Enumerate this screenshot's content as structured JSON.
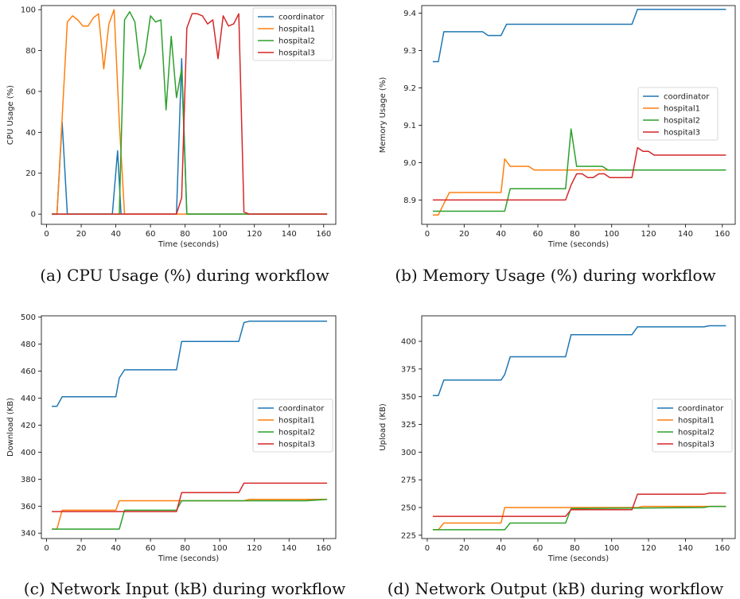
{
  "series_colors": {
    "coordinator": "#1f77b4",
    "hospital1": "#ff7f0e",
    "hospital2": "#2ca02c",
    "hospital3": "#d62728"
  },
  "chart_data": [
    {
      "type": "line",
      "caption": "(a) CPU Usage (%) during workflow",
      "xlabel": "Time (seconds)",
      "ylabel": "CPU Usage (%)",
      "xlim": [
        -3,
        167
      ],
      "ylim": [
        -5,
        102
      ],
      "xticks": [
        0,
        20,
        40,
        60,
        80,
        100,
        120,
        140,
        160
      ],
      "yticks": [
        0,
        20,
        40,
        60,
        80,
        100
      ],
      "ytick_labels": [
        "0",
        "20",
        "40",
        "60",
        "80",
        "100"
      ],
      "legend_position": "top-right",
      "series": [
        {
          "name": "coordinator",
          "x": [
            3,
            6,
            9,
            12,
            15,
            38,
            41,
            43,
            46,
            75,
            78,
            81,
            84,
            160,
            162
          ],
          "y": [
            0,
            0,
            45,
            0,
            0,
            0,
            31,
            0,
            0,
            0,
            76,
            0,
            0,
            0,
            0
          ]
        },
        {
          "name": "hospital1",
          "x": [
            3,
            6,
            12,
            15,
            18,
            21,
            24,
            27,
            30,
            33,
            36,
            39,
            42,
            45,
            48,
            160,
            162
          ],
          "y": [
            0,
            0,
            94,
            97,
            95,
            92,
            92,
            96,
            98,
            71,
            93,
            100,
            45,
            0,
            0,
            0,
            0
          ]
        },
        {
          "name": "hospital2",
          "x": [
            3,
            40,
            42,
            45,
            48,
            51,
            54,
            57,
            60,
            63,
            66,
            69,
            72,
            75,
            78,
            81,
            84,
            160,
            162
          ],
          "y": [
            0,
            0,
            0,
            95,
            99,
            94,
            71,
            79,
            97,
            94,
            95,
            51,
            87,
            57,
            71,
            0,
            0,
            0,
            0
          ]
        },
        {
          "name": "hospital3",
          "x": [
            3,
            75,
            78,
            81,
            84,
            87,
            90,
            93,
            96,
            99,
            102,
            105,
            108,
            111,
            114,
            117,
            160,
            162
          ],
          "y": [
            0,
            0,
            8,
            91,
            98,
            98,
            97,
            93,
            95,
            76,
            97,
            92,
            93,
            98,
            1,
            0,
            0,
            0
          ]
        }
      ]
    },
    {
      "type": "line",
      "caption": "(b) Memory Usage (%) during workflow",
      "xlabel": "Time (seconds)",
      "ylabel": "Memory Usage (%)",
      "xlim": [
        -3,
        167
      ],
      "ylim": [
        8.835,
        9.42
      ],
      "xticks": [
        0,
        20,
        40,
        60,
        80,
        100,
        120,
        140,
        160
      ],
      "yticks": [
        8.9,
        9.0,
        9.1,
        9.2,
        9.3,
        9.4
      ],
      "ytick_labels": [
        "8.9",
        "9.0",
        "9.1",
        "9.2",
        "9.3",
        "9.4"
      ],
      "legend_position": "center-right",
      "series": [
        {
          "name": "coordinator",
          "x": [
            3,
            6,
            9,
            12,
            30,
            33,
            37,
            40,
            43,
            60,
            80,
            100,
            111,
            114,
            162
          ],
          "y": [
            9.27,
            9.27,
            9.35,
            9.35,
            9.35,
            9.34,
            9.34,
            9.34,
            9.37,
            9.37,
            9.37,
            9.37,
            9.37,
            9.41,
            9.41
          ]
        },
        {
          "name": "hospital1",
          "x": [
            3,
            6,
            9,
            12,
            40,
            42,
            45,
            55,
            58,
            75,
            78,
            81,
            100,
            162
          ],
          "y": [
            8.86,
            8.86,
            8.89,
            8.92,
            8.92,
            9.01,
            8.99,
            8.99,
            8.98,
            8.98,
            8.98,
            8.98,
            8.98,
            8.98
          ]
        },
        {
          "name": "hospital2",
          "x": [
            3,
            42,
            45,
            75,
            78,
            81,
            84,
            95,
            98,
            162
          ],
          "y": [
            8.87,
            8.87,
            8.93,
            8.93,
            9.09,
            8.99,
            8.99,
            8.99,
            8.98,
            8.98
          ]
        },
        {
          "name": "hospital3",
          "x": [
            3,
            75,
            78,
            81,
            84,
            87,
            90,
            93,
            96,
            99,
            102,
            105,
            108,
            111,
            114,
            117,
            120,
            123,
            126,
            162
          ],
          "y": [
            8.9,
            8.9,
            8.94,
            8.97,
            8.97,
            8.96,
            8.96,
            8.97,
            8.97,
            8.96,
            8.96,
            8.96,
            8.96,
            8.96,
            9.04,
            9.03,
            9.03,
            9.02,
            9.02,
            9.02
          ]
        }
      ]
    },
    {
      "type": "line",
      "caption": "(c) Network Input (kB) during workflow",
      "xlabel": "Time (seconds)",
      "ylabel": "Download (KB)",
      "xlim": [
        -3,
        167
      ],
      "ylim": [
        336,
        501
      ],
      "xticks": [
        0,
        20,
        40,
        60,
        80,
        100,
        120,
        140,
        160
      ],
      "yticks": [
        340,
        360,
        380,
        400,
        420,
        440,
        460,
        480,
        500
      ],
      "ytick_labels": [
        "340",
        "360",
        "380",
        "400",
        "420",
        "440",
        "460",
        "480",
        "500"
      ],
      "legend_position": "center-right",
      "series": [
        {
          "name": "coordinator",
          "x": [
            3,
            6,
            9,
            40,
            42,
            45,
            75,
            78,
            111,
            114,
            117,
            162
          ],
          "y": [
            434,
            434,
            441,
            441,
            455,
            461,
            461,
            482,
            482,
            496,
            497,
            497
          ]
        },
        {
          "name": "hospital1",
          "x": [
            3,
            6,
            9,
            40,
            42,
            114,
            117,
            150,
            162
          ],
          "y": [
            343,
            343,
            357,
            357,
            364,
            364,
            365,
            365,
            365
          ]
        },
        {
          "name": "hospital2",
          "x": [
            3,
            40,
            42,
            45,
            75,
            78,
            150,
            162
          ],
          "y": [
            343,
            343,
            343,
            357,
            357,
            364,
            364,
            365
          ]
        },
        {
          "name": "hospital3",
          "x": [
            3,
            9,
            75,
            78,
            111,
            114,
            162
          ],
          "y": [
            356,
            356,
            356,
            370,
            370,
            377,
            377
          ]
        }
      ]
    },
    {
      "type": "line",
      "caption": "(d) Network Output (kB) during workflow",
      "xlabel": "Time (seconds)",
      "ylabel": "Upload (KB)",
      "xlim": [
        -3,
        167
      ],
      "ylim": [
        222,
        423
      ],
      "xticks": [
        0,
        20,
        40,
        60,
        80,
        100,
        120,
        140,
        160
      ],
      "yticks": [
        225,
        250,
        275,
        300,
        325,
        350,
        375,
        400
      ],
      "ytick_labels": [
        "225",
        "250",
        "275",
        "300",
        "325",
        "350",
        "375",
        "400"
      ],
      "legend_position": "center-right",
      "series": [
        {
          "name": "coordinator",
          "x": [
            3,
            6,
            9,
            40,
            42,
            45,
            75,
            78,
            111,
            114,
            150,
            153,
            162
          ],
          "y": [
            351,
            351,
            365,
            365,
            370,
            386,
            386,
            406,
            406,
            413,
            413,
            414,
            414
          ]
        },
        {
          "name": "hospital1",
          "x": [
            3,
            6,
            9,
            40,
            42,
            114,
            117,
            162
          ],
          "y": [
            230,
            230,
            236,
            236,
            250,
            250,
            251,
            251
          ]
        },
        {
          "name": "hospital2",
          "x": [
            3,
            40,
            42,
            45,
            75,
            78,
            150,
            153,
            162
          ],
          "y": [
            230,
            230,
            230,
            236,
            236,
            249,
            250,
            251,
            251
          ]
        },
        {
          "name": "hospital3",
          "x": [
            3,
            75,
            78,
            111,
            114,
            150,
            153,
            162
          ],
          "y": [
            242,
            242,
            248,
            248,
            262,
            262,
            263,
            263
          ]
        }
      ]
    }
  ]
}
